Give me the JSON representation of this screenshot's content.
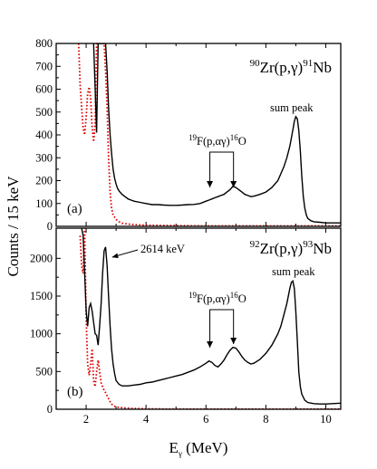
{
  "chart_data": [
    {
      "type": "line",
      "panel_label": "(a)",
      "reaction": {
        "target_mass": "90",
        "target": "Zr(p,γ)",
        "product_mass": "91",
        "product": "Nb"
      },
      "xlabel": "Eγ (MeV)",
      "ylabel": "Counts / 15 keV",
      "xlim": [
        1.0,
        10.5
      ],
      "ylim": [
        0,
        800
      ],
      "x_ticks": [
        2,
        4,
        6,
        8,
        10
      ],
      "y_ticks": [
        0,
        100,
        200,
        300,
        400,
        500,
        600,
        700,
        800
      ],
      "annotations": {
        "sum_peak": "sum peak",
        "contaminant": {
          "a_mass": "19",
          "reaction": "F(p,αγ)",
          "b_mass": "16",
          "product": "O"
        }
      },
      "arrow_energies": [
        6.13,
        6.92
      ],
      "series": [
        {
          "style": "solid",
          "color": "#000000",
          "x": [
            2.25,
            2.3,
            2.35,
            2.4,
            2.45,
            2.5,
            2.55,
            2.6,
            2.65,
            2.7,
            2.75,
            2.8,
            2.85,
            2.9,
            2.95,
            3.0,
            3.05,
            3.1,
            3.2,
            3.3,
            3.4,
            3.5,
            3.6,
            3.8,
            4.0,
            4.2,
            4.4,
            4.6,
            4.8,
            5.0,
            5.2,
            5.4,
            5.6,
            5.8,
            6.0,
            6.1,
            6.2,
            6.3,
            6.4,
            6.5,
            6.6,
            6.7,
            6.8,
            6.9,
            7.0,
            7.1,
            7.2,
            7.3,
            7.4,
            7.5,
            7.6,
            7.8,
            8.0,
            8.2,
            8.4,
            8.5,
            8.6,
            8.7,
            8.8,
            8.9,
            8.95,
            9.0,
            9.05,
            9.1,
            9.15,
            9.2,
            9.25,
            9.3,
            9.35,
            9.4,
            9.5,
            9.6,
            9.8,
            10.0,
            10.2,
            10.5
          ],
          "y": [
            800,
            600,
            410,
            800,
            800,
            800,
            800,
            800,
            800,
            680,
            520,
            400,
            320,
            250,
            210,
            185,
            165,
            155,
            140,
            130,
            120,
            115,
            110,
            105,
            100,
            95,
            95,
            93,
            92,
            92,
            93,
            95,
            96,
            100,
            110,
            115,
            120,
            125,
            130,
            135,
            140,
            150,
            160,
            175,
            170,
            160,
            150,
            140,
            135,
            130,
            132,
            140,
            150,
            170,
            200,
            230,
            260,
            300,
            350,
            420,
            460,
            480,
            470,
            420,
            330,
            220,
            130,
            80,
            50,
            35,
            25,
            20,
            18,
            15,
            15,
            15
          ]
        },
        {
          "style": "dotted",
          "color": "#e00000",
          "x": [
            1.75,
            1.8,
            1.85,
            1.9,
            1.95,
            2.0,
            2.05,
            2.1,
            2.15,
            2.2,
            2.25,
            2.3,
            2.35,
            2.4,
            2.45,
            2.5,
            2.55,
            2.6,
            2.65,
            2.7,
            2.75,
            2.8,
            2.85,
            2.9,
            3.0,
            3.1,
            3.2,
            3.4,
            3.6,
            3.8,
            4.0,
            4.5,
            5.0,
            6.0,
            7.0,
            8.0,
            9.0,
            10.0,
            10.5
          ],
          "y": [
            800,
            620,
            520,
            430,
            400,
            480,
            580,
            610,
            560,
            430,
            370,
            450,
            800,
            800,
            800,
            800,
            800,
            800,
            680,
            520,
            300,
            150,
            80,
            50,
            30,
            20,
            14,
            10,
            8,
            6,
            5,
            4,
            3,
            2,
            2,
            2,
            2,
            2,
            2
          ]
        }
      ]
    },
    {
      "type": "line",
      "panel_label": "(b)",
      "reaction": {
        "target_mass": "92",
        "target": "Zr(p,γ)",
        "product_mass": "93",
        "product": "Nb"
      },
      "xlabel": "Eγ (MeV)",
      "ylabel": "Counts / 15 keV",
      "xlim": [
        1.0,
        10.5
      ],
      "ylim": [
        0,
        2400
      ],
      "x_ticks": [
        2,
        4,
        6,
        8,
        10
      ],
      "y_ticks": [
        0,
        500,
        1000,
        1500,
        2000
      ],
      "annotations": {
        "sum_peak": "sum peak",
        "gamma_line": "2614 keV",
        "contaminant": {
          "a_mass": "19",
          "reaction": "F(p,αγ)",
          "b_mass": "16",
          "product": "O"
        }
      },
      "arrow_energies": [
        6.13,
        6.92
      ],
      "series": [
        {
          "style": "solid",
          "color": "#000000",
          "x": [
            1.85,
            1.9,
            1.95,
            2.0,
            2.05,
            2.1,
            2.15,
            2.2,
            2.25,
            2.3,
            2.35,
            2.4,
            2.45,
            2.5,
            2.55,
            2.6,
            2.65,
            2.7,
            2.75,
            2.8,
            2.85,
            2.9,
            2.95,
            3.0,
            3.1,
            3.2,
            3.4,
            3.6,
            3.8,
            4.0,
            4.2,
            4.4,
            4.6,
            4.8,
            5.0,
            5.2,
            5.4,
            5.6,
            5.8,
            6.0,
            6.1,
            6.2,
            6.3,
            6.4,
            6.5,
            6.6,
            6.7,
            6.8,
            6.9,
            7.0,
            7.1,
            7.2,
            7.3,
            7.4,
            7.5,
            7.6,
            7.8,
            8.0,
            8.2,
            8.4,
            8.5,
            8.6,
            8.7,
            8.8,
            8.85,
            8.9,
            8.95,
            9.0,
            9.05,
            9.1,
            9.15,
            9.2,
            9.3,
            9.4,
            9.6,
            9.8,
            10.0,
            10.5
          ],
          "y": [
            2400,
            2300,
            1800,
            1300,
            1100,
            1350,
            1400,
            1300,
            1150,
            1000,
            980,
            850,
            1100,
            1400,
            1800,
            2100,
            2150,
            1900,
            1500,
            1100,
            800,
            600,
            470,
            380,
            330,
            310,
            310,
            320,
            330,
            350,
            360,
            380,
            400,
            420,
            440,
            460,
            490,
            520,
            560,
            610,
            640,
            620,
            580,
            560,
            600,
            650,
            720,
            780,
            820,
            810,
            760,
            700,
            650,
            620,
            600,
            610,
            660,
            740,
            850,
            1000,
            1100,
            1250,
            1400,
            1600,
            1680,
            1700,
            1600,
            1300,
            900,
            500,
            300,
            200,
            120,
            90,
            75,
            70,
            70,
            80
          ]
        },
        {
          "style": "dotted",
          "color": "#e00000",
          "x": [
            1.8,
            1.85,
            1.9,
            1.95,
            2.0,
            2.05,
            2.1,
            2.15,
            2.2,
            2.25,
            2.3,
            2.35,
            2.4,
            2.45,
            2.5,
            2.55,
            2.6,
            2.65,
            2.7,
            2.75,
            2.8,
            2.85,
            2.9,
            2.95,
            3.0,
            3.2,
            3.4,
            3.6,
            3.8,
            4.0,
            4.5,
            5.0,
            6.0,
            7.0,
            8.0,
            9.0,
            10.0,
            10.5
          ],
          "y": [
            2300,
            1900,
            1800,
            2400,
            1200,
            600,
            450,
            600,
            800,
            380,
            300,
            500,
            650,
            500,
            350,
            300,
            250,
            220,
            180,
            140,
            100,
            70,
            50,
            40,
            30,
            20,
            15,
            10,
            8,
            6,
            4,
            3,
            2,
            2,
            2,
            2,
            2,
            2
          ]
        }
      ]
    }
  ]
}
